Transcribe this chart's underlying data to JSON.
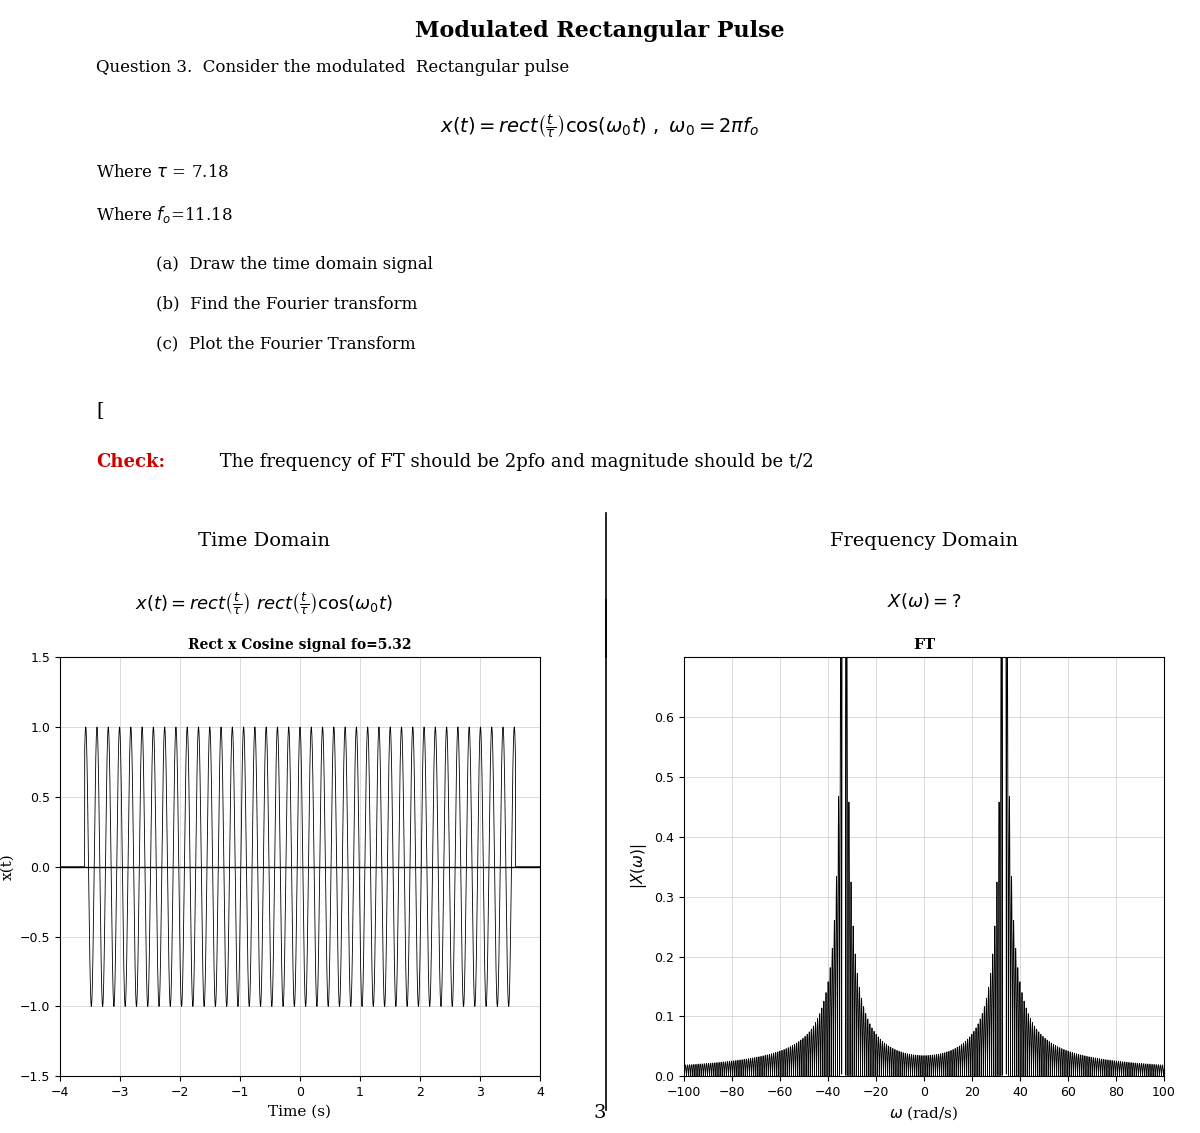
{
  "tau": 7.18,
  "fo_given": 11.18,
  "fo_plot": 5.32,
  "title_main": "Modulated Rectangular Pulse",
  "question_text": "Question 3.  Consider the modulated  Rectangular pulse",
  "plot_title_time": "Rect x Cosine signal fo=5.32",
  "xlabel_time": "Time (s)",
  "ylabel_time": "x(t)",
  "xlim_time": [
    -4,
    4
  ],
  "ylim_time": [
    -1.5,
    1.5
  ],
  "plot_title_freq": "FT",
  "xlim_freq": [
    -100,
    100
  ],
  "ylim_freq": [
    0,
    0.7
  ],
  "page_number": "3",
  "background_color": "#ffffff",
  "line_color": "#000000",
  "check_color": "#cc0000"
}
